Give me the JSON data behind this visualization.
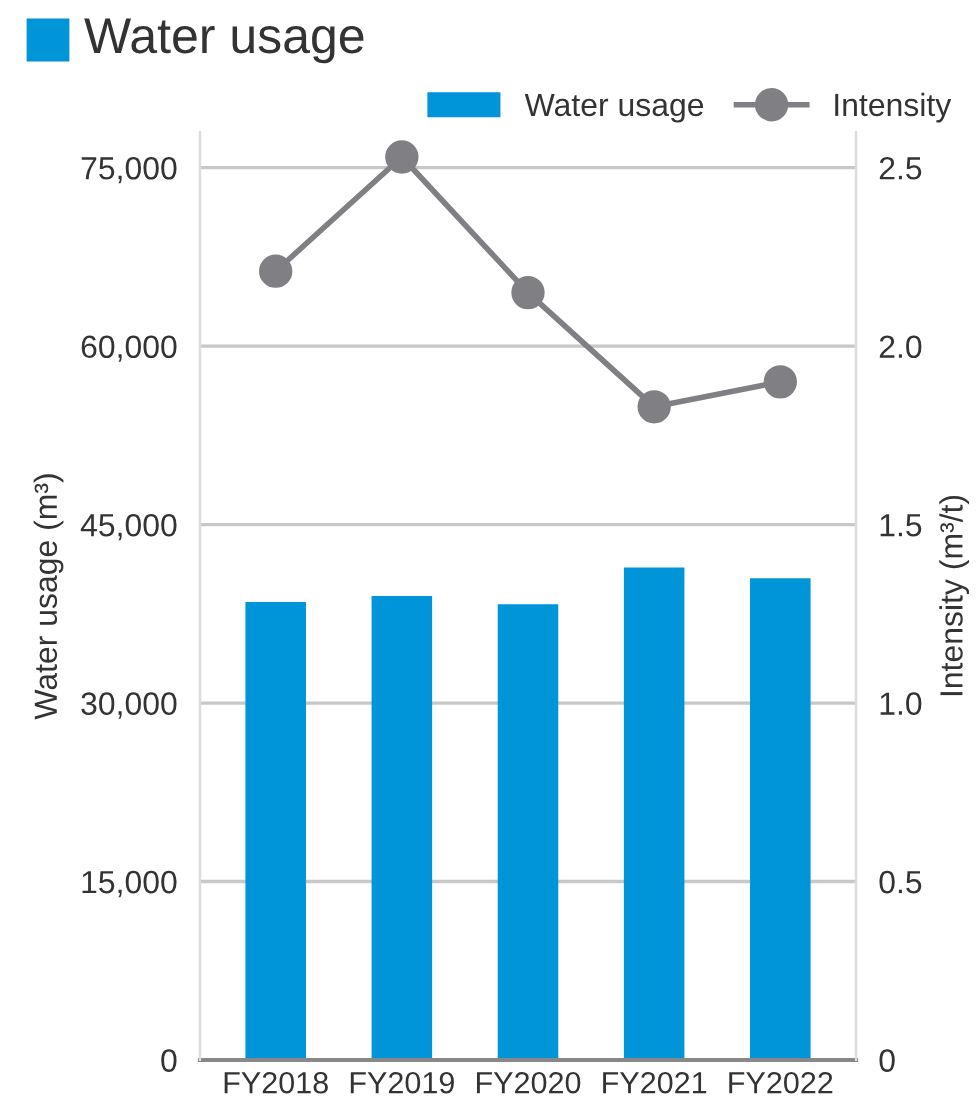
{
  "chart_data": {
    "type": "bar",
    "title": "Water usage",
    "categories": [
      "FY2018",
      "FY2019",
      "FY2020",
      "FY2021",
      "FY2022"
    ],
    "series": [
      {
        "name": "Water usage",
        "color": "#0095d9",
        "values": [
          38500,
          39000,
          38300,
          41400,
          40500
        ]
      },
      {
        "name": "Intensity",
        "type": "line",
        "axis": "y2",
        "color": "#808084",
        "values": [
          2.21,
          2.53,
          2.15,
          1.83,
          1.9
        ]
      }
    ],
    "ylabel": "Water usage (m³)",
    "y2label": "Intensity (m³/t)",
    "ylim": [
      0,
      78000
    ],
    "yticks": [
      {
        "value": 0,
        "label": "0"
      },
      {
        "value": 15000,
        "label": "15,000"
      },
      {
        "value": 30000,
        "label": "30,000"
      },
      {
        "value": 45000,
        "label": "45,000"
      },
      {
        "value": 60000,
        "label": "60,000"
      },
      {
        "value": 75000,
        "label": "75,000"
      }
    ],
    "y2lim": [
      0,
      2.6
    ],
    "y2ticks": [
      {
        "value": 0,
        "label": "0"
      },
      {
        "value": 0.5,
        "label": "0.5"
      },
      {
        "value": 1.0,
        "label": "1.0"
      },
      {
        "value": 1.5,
        "label": "1.5"
      },
      {
        "value": 2.0,
        "label": "2.0"
      },
      {
        "value": 2.5,
        "label": "2.5"
      }
    ],
    "grid": "y",
    "legend": "top right",
    "marker": "circle",
    "line_style": "solid"
  }
}
